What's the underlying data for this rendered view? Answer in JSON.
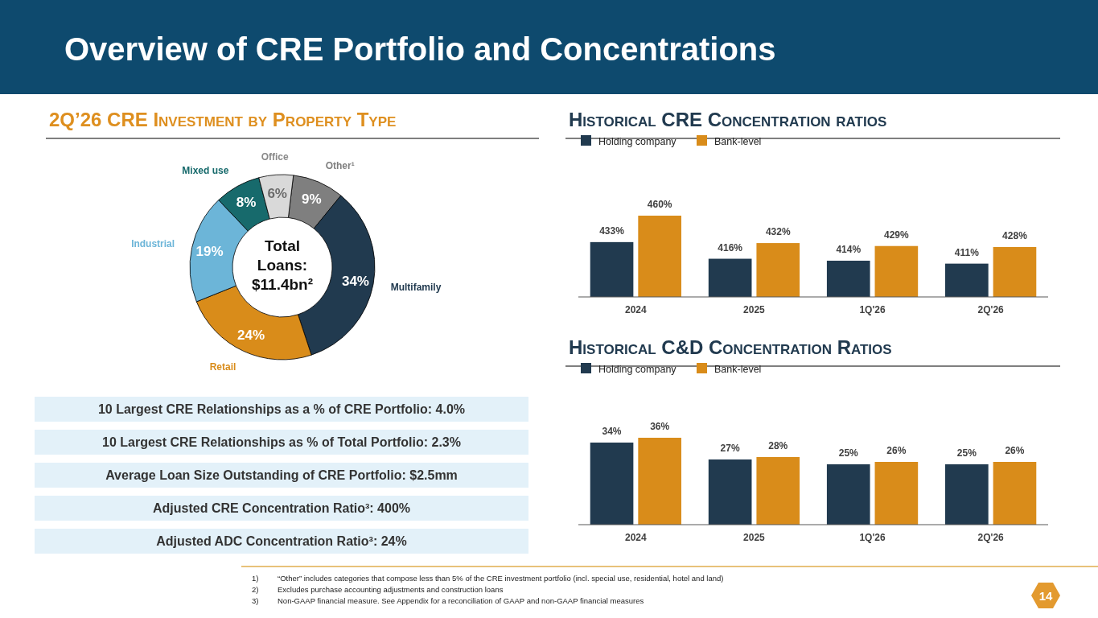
{
  "chart_data": [
    {
      "type": "other",
      "title": "Overview of CRE Portfolio and Concentrations",
      "annotations": [
        "10 Largest CRE Relationships as a % of CRE Portfolio: 4.0%",
        "10 Largest CRE Relationships as % of Total Portfolio: 2.3%",
        "Average Loan Size Outstanding of CRE Portfolio: $2.5mm",
        "Adjusted CRE Concentration Ratio³: 400%",
        "Adjusted ADC Concentration Ratio³: 24%",
        "1) “Other” includes categories that compose less than 5% of the CRE investment portfolio (incl. special use, residential, hotel and land)",
        "2) Excludes purchase accounting adjustments and construction loans",
        "3) Non-GAAP financial measure. See Appendix for a reconciliation of GAAP and non-GAAP financial measures",
        "14"
      ]
    },
    {
      "type": "donut",
      "title": "2Q’26 CRE Investment by Property Type",
      "categories": [
        "Other¹",
        "Multifamily",
        "Retail",
        "Industrial",
        "Mixed use",
        "Office"
      ],
      "values": [
        9,
        34,
        24,
        19,
        8,
        6
      ],
      "colors": [
        "#7f7f7f",
        "#213a4f",
        "#d98c1a",
        "#6cb5d8",
        "#176a6c",
        "#d9d9d9"
      ],
      "value_labels": [
        "9%",
        "34%",
        "24%",
        "19%",
        "8%",
        "6%"
      ],
      "annotations": [
        "Total Loans: $11.4bn²"
      ]
    },
    {
      "type": "bar",
      "title": "Historical CRE Concentration ratios",
      "categories": [
        "2024",
        "2025",
        "1Q'26",
        "2Q'26"
      ],
      "ylim": [
        377,
        460
      ],
      "tick_labels": "x",
      "legend": "top left",
      "series": [
        {
          "name": "Holding company",
          "color": "#213a4f",
          "values": [
            433,
            416,
            414,
            411
          ],
          "value_labels": [
            "433%",
            "416%",
            "414%",
            "411%"
          ]
        },
        {
          "name": "Bank-level",
          "color": "#d98c1a",
          "values": [
            460,
            432,
            429,
            428
          ],
          "value_labels": [
            "460%",
            "432%",
            "429%",
            "428%"
          ]
        }
      ]
    },
    {
      "type": "bar",
      "title": "Historical C&D Concentration Ratios",
      "categories": [
        "2024",
        "2025",
        "1Q'26",
        "2Q'26"
      ],
      "ylim": [
        0,
        36
      ],
      "tick_labels": "x",
      "legend": "top left",
      "series": [
        {
          "name": "Holding company",
          "color": "#213a4f",
          "values": [
            34,
            27,
            25,
            25
          ],
          "value_labels": [
            "34%",
            "27%",
            "25%",
            "25%"
          ]
        },
        {
          "name": "Bank-level",
          "color": "#d98c1a",
          "values": [
            36,
            28,
            26,
            26
          ],
          "value_labels": [
            "36%",
            "28%",
            "26%",
            "26%"
          ]
        }
      ]
    }
  ]
}
